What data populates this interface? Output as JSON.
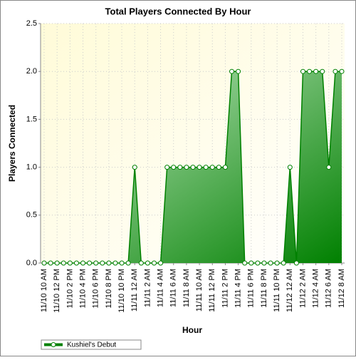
{
  "chart_data": {
    "type": "area",
    "title": "Total Players Connected By Hour",
    "x_label": "Hour",
    "y_label": "Players Connected",
    "categories": [
      "11/10 10 AM",
      null,
      "11/10 12 PM",
      null,
      "11/10 2 PM",
      null,
      "11/10 4 PM",
      null,
      "11/10 6 PM",
      null,
      "11/10 8 PM",
      null,
      "11/10 10 PM",
      null,
      "11/11 12 AM",
      null,
      "11/11 2 AM",
      null,
      "11/11 4 AM",
      null,
      "11/11 6 AM",
      null,
      "11/11 8 AM",
      null,
      "11/11 10 AM",
      null,
      "11/11 12 PM",
      null,
      "11/11 2 PM",
      null,
      "11/11 4 PM",
      null,
      "11/11 6 PM",
      null,
      "11/11 8 PM",
      null,
      "11/11 10 PM",
      null,
      "11/12 12 AM",
      null,
      "11/12 2 AM",
      null,
      "11/12 4 AM",
      null,
      "11/12 6 AM",
      null,
      "11/12 8 AM"
    ],
    "series": [
      {
        "name": "Kushiel's Debut",
        "color": "#008000",
        "values": [
          0,
          0,
          0,
          0,
          0,
          0,
          0,
          0,
          0,
          0,
          0,
          0,
          0,
          0,
          1,
          0,
          0,
          0,
          0,
          1,
          1,
          1,
          1,
          1,
          1,
          1,
          1,
          1,
          1,
          2,
          2,
          0,
          0,
          0,
          0,
          0,
          0,
          0,
          1,
          0,
          2,
          2,
          2,
          2,
          1,
          2,
          2
        ]
      }
    ],
    "ylim": [
      0,
      2.5
    ],
    "yticks": [
      {
        "value": 0,
        "label": "0.0"
      },
      0.5,
      {
        "value": 1,
        "label": "1.0"
      },
      1.5,
      {
        "value": 2,
        "label": "2.0"
      },
      2.5
    ],
    "grid": true,
    "legend": "bottom-left"
  }
}
